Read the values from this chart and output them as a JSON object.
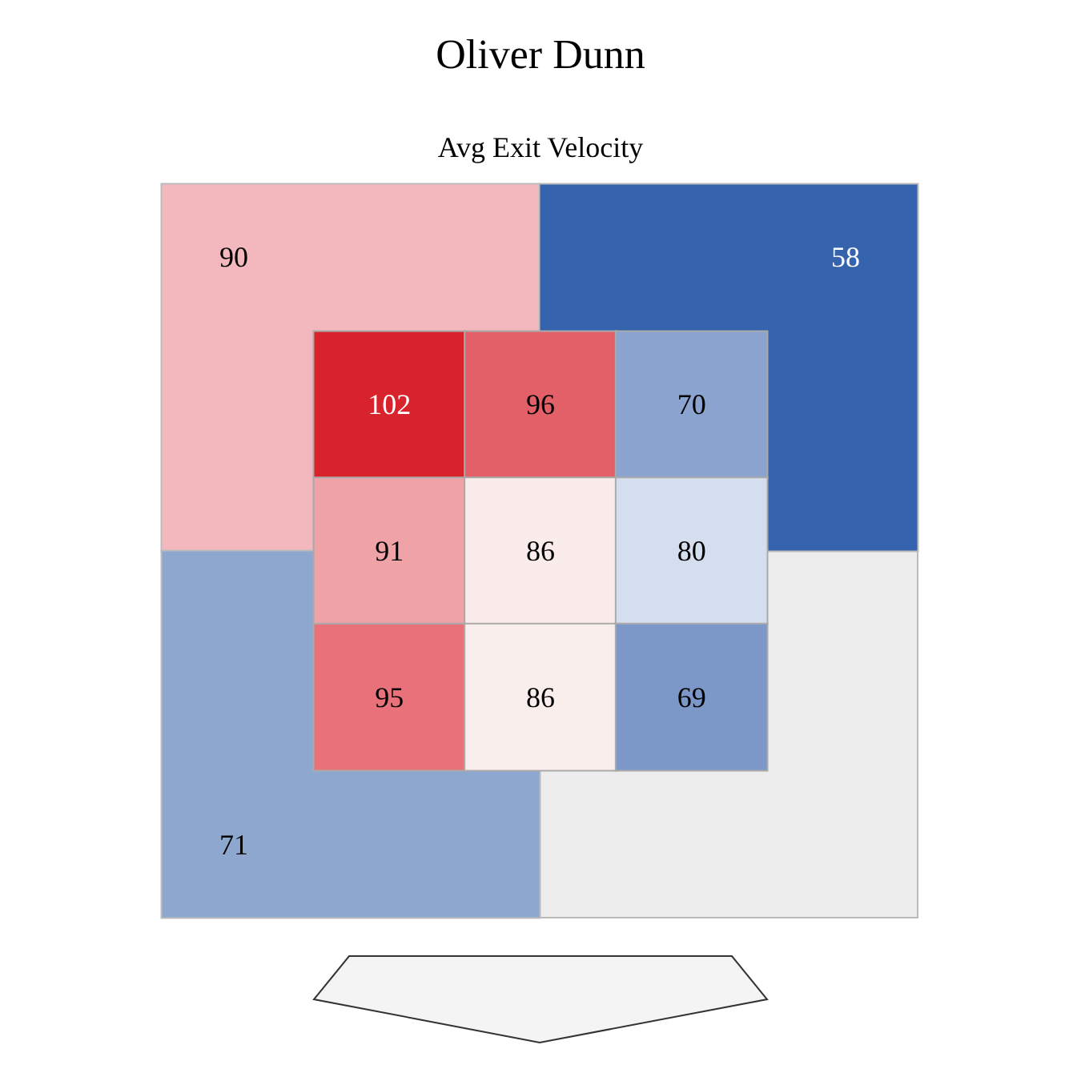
{
  "chart_data": [
    {
      "type": "other",
      "title": "Oliver Dunn",
      "subtitle": "Avg Exit Velocity",
      "data_labels": true,
      "values": [
        90,
        58,
        71,
        null
      ],
      "colors": [
        "#f2b8bd",
        "#3563ad",
        "#8ea7cf",
        "#ededed"
      ]
    },
    {
      "type": "heatmap",
      "data_labels": true,
      "categories": [
        null,
        null,
        null
      ],
      "y_categories": [
        null,
        null,
        null
      ],
      "cells": [
        [
          102,
          96,
          70
        ],
        [
          91,
          86,
          80
        ],
        [
          95,
          86,
          69
        ]
      ],
      "colors": [
        "#d8222c",
        "#e46068",
        "#8aa3cf",
        "#efa3a7",
        "#faeceb",
        "#d5deee",
        "#e8717a",
        "#faeeed",
        "#7b98c8"
      ]
    }
  ]
}
